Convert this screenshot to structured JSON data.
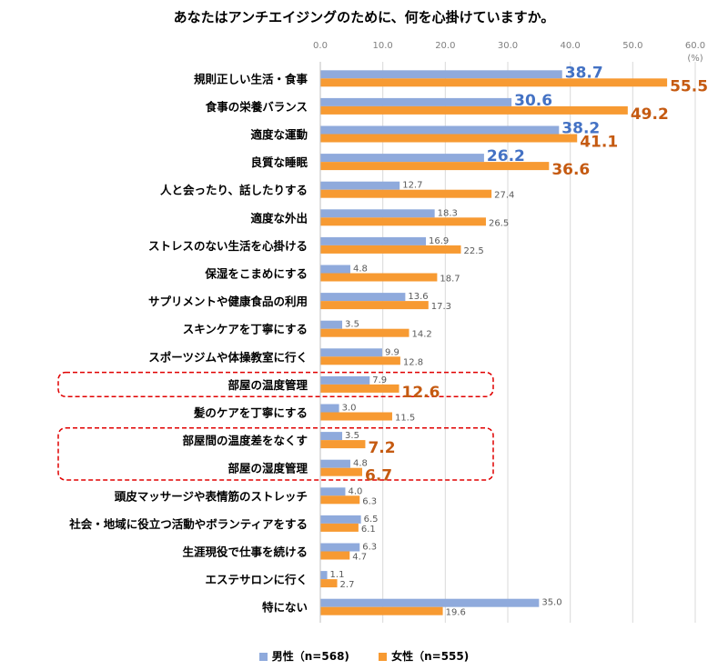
{
  "chart_data": {
    "type": "bar",
    "orientation": "horizontal",
    "title": "あなたはアンチエイジングのために、何を心掛けていますか。",
    "unit": "(%)",
    "xlim": [
      0,
      60
    ],
    "ticks": [
      "0.0",
      "10.0",
      "20.0",
      "30.0",
      "40.0",
      "50.0",
      "60.0"
    ],
    "grid": true,
    "legend_position": "bottom",
    "categories": [
      "規則正しい生活・食事",
      "食事の栄養バランス",
      "適度な運動",
      "良質な睡眠",
      "人と会ったり、話したりする",
      "適度な外出",
      "ストレスのない生活を心掛ける",
      "保湿をこまめにする",
      "サプリメントや健康食品の利用",
      "スキンケアを丁寧にする",
      "スポーツジムや体操教室に行く",
      "部屋の温度管理",
      "髪のケアを丁寧にする",
      "部屋間の温度差をなくす",
      "部屋の湿度管理",
      "頭皮マッサージや表情筋のストレッチ",
      "社会・地域に役立つ活動やボランティアをする",
      "生涯現役で仕事を続ける",
      "エステサロンに行く",
      "特にない"
    ],
    "series": [
      {
        "name": "男性（n=568)",
        "color": "#8faadc",
        "label_color": "#4472c4",
        "values": [
          38.7,
          30.6,
          38.2,
          26.2,
          12.7,
          18.3,
          16.9,
          4.8,
          13.6,
          3.5,
          9.9,
          7.9,
          3.0,
          3.5,
          4.8,
          4.0,
          6.5,
          6.3,
          1.1,
          35.0
        ]
      },
      {
        "name": "女性（n=555)",
        "color": "#f79a32",
        "label_color": "#c55a11",
        "values": [
          55.5,
          49.2,
          41.1,
          36.6,
          27.4,
          26.5,
          22.5,
          18.7,
          17.3,
          14.2,
          12.8,
          12.6,
          11.5,
          7.2,
          6.7,
          6.3,
          6.1,
          4.7,
          2.7,
          19.6
        ]
      }
    ],
    "emphasized_labels": {
      "男性（n=568)": [
        0,
        1,
        2,
        3
      ],
      "女性（n=555)": [
        0,
        1,
        2,
        3,
        11,
        13,
        14
      ]
    },
    "highlight_boxes": [
      [
        11
      ],
      [
        13,
        14
      ]
    ],
    "label_color_normal": "#595959",
    "axis_label_color": "#7f7f7f",
    "grid_color": "#d9d9d9",
    "highlight_color": "#e00000"
  }
}
